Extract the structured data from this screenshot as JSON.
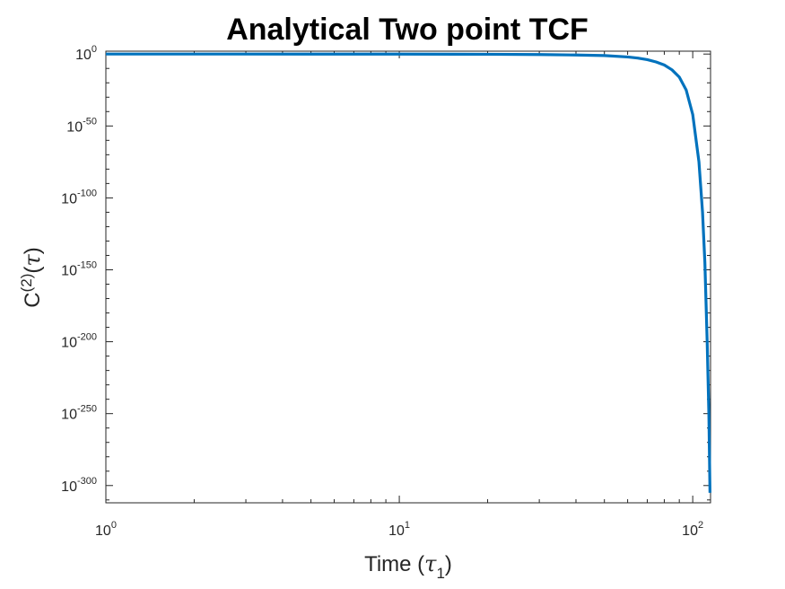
{
  "chart_data": {
    "type": "line",
    "title": "Analytical Two point TCF",
    "xlabel": {
      "text": "Time (",
      "symbol": "τ",
      "subscript": "1",
      "close": ")"
    },
    "ylabel": {
      "text": "C",
      "superscript": "(2)",
      "open": "(",
      "symbol": "τ",
      "close": ")"
    },
    "x_scale": "log",
    "y_scale": "log",
    "xlim": [
      1,
      115
    ],
    "ylim_exponent": [
      -312,
      2
    ],
    "x_ticks": [
      {
        "value": 1,
        "base": "10",
        "exp": "0"
      },
      {
        "value": 10,
        "base": "10",
        "exp": "1"
      },
      {
        "value": 100,
        "base": "10",
        "exp": "2"
      }
    ],
    "y_ticks": [
      {
        "exp_value": 0,
        "base": "10",
        "exp": "0"
      },
      {
        "exp_value": -50,
        "base": "10",
        "exp": "-50"
      },
      {
        "exp_value": -100,
        "base": "10",
        "exp": "-100"
      },
      {
        "exp_value": -150,
        "base": "10",
        "exp": "-150"
      },
      {
        "exp_value": -200,
        "base": "10",
        "exp": "-200"
      },
      {
        "exp_value": -250,
        "base": "10",
        "exp": "-250"
      },
      {
        "exp_value": -300,
        "base": "10",
        "exp": "-300"
      }
    ],
    "grid": false,
    "series": [
      {
        "color": "#0072BD",
        "x": [
          1,
          5,
          10,
          20,
          30,
          40,
          50,
          60,
          65,
          70,
          75,
          80,
          85,
          90,
          95,
          100,
          105,
          108,
          110,
          112,
          113.5,
          114.5
        ],
        "y_log10": [
          0,
          -0.008,
          -0.03,
          -0.16,
          -0.35,
          -0.66,
          -1.05,
          -2.0,
          -2.8,
          -3.9,
          -5.5,
          -7.6,
          -11.0,
          -16.0,
          -25.0,
          -42.0,
          -75.0,
          -110.0,
          -145.0,
          -200.0,
          -250.0,
          -305.0
        ]
      }
    ]
  }
}
